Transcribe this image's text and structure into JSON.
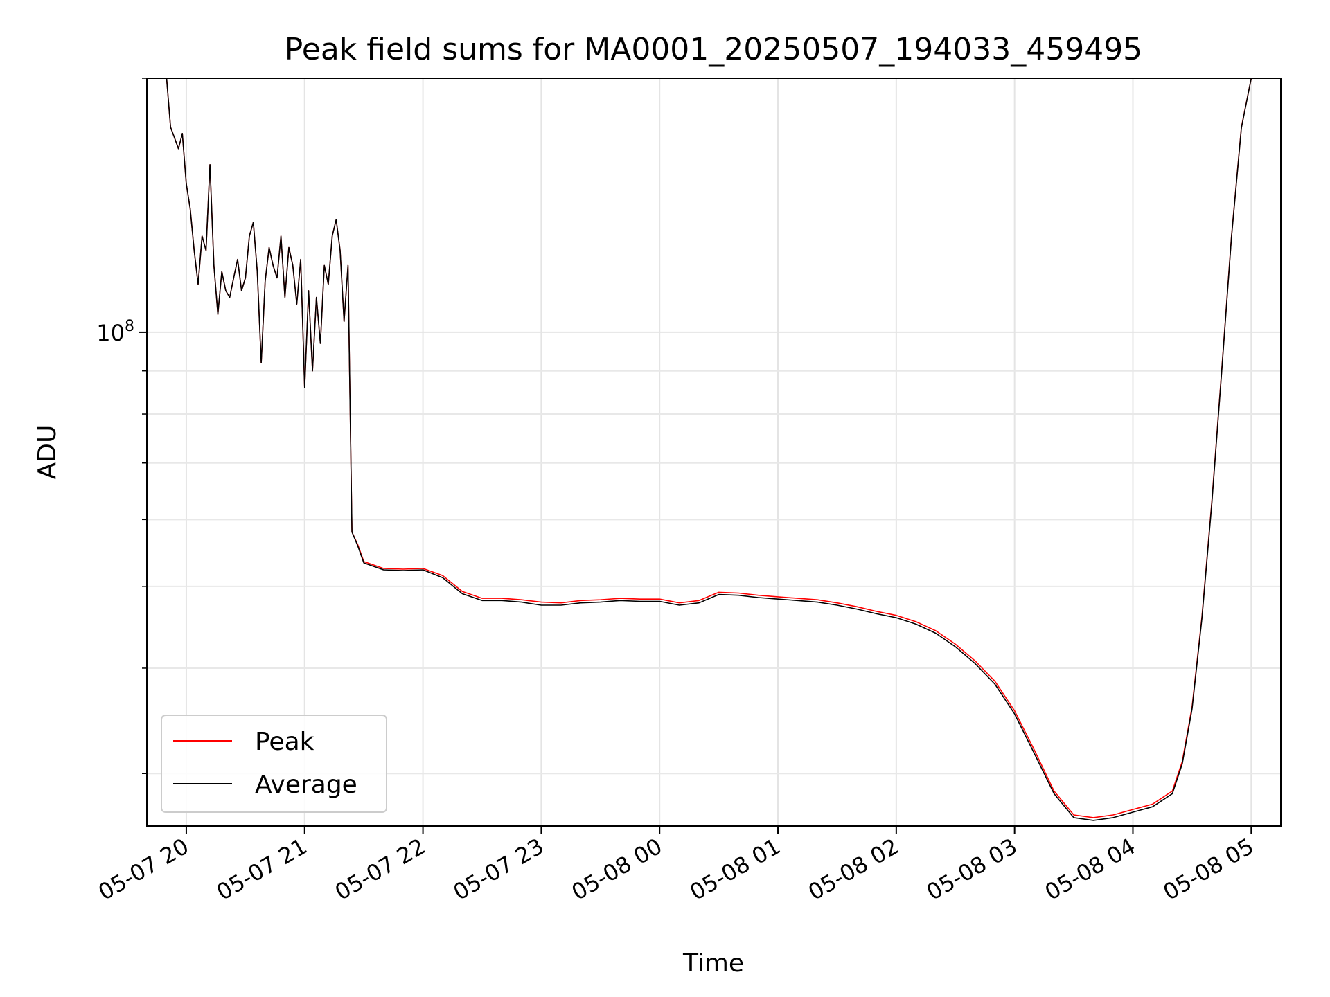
{
  "chart_data": {
    "type": "line",
    "title": "Peak field sums for MA0001_20250507_194033_459495",
    "xlabel": "Time",
    "ylabel": "ADU",
    "y_scale": "log",
    "grid": true,
    "legend_position": "lower-left",
    "xlim": [
      "2025-05-07 19:40",
      "2025-05-08 05:15"
    ],
    "ylim": [
      26000000,
      200000000
    ],
    "x_ticks": [
      "05-07 20",
      "05-07 21",
      "05-07 22",
      "05-07 23",
      "05-08 00",
      "05-08 01",
      "05-08 02",
      "05-08 03",
      "05-08 04",
      "05-08 05"
    ],
    "y_ticks": [
      {
        "mantissa": "10",
        "exponent": "8",
        "value": 100000000
      }
    ],
    "colors": {
      "peak": "#ff0000",
      "average": "#000000"
    },
    "series": [
      {
        "name": "Peak",
        "color": "#ff0000",
        "points": [
          [
            "2025-05-07 19:40",
            200000000
          ],
          [
            "2025-05-07 19:50",
            200000000
          ],
          [
            "2025-05-07 19:52",
            175000000
          ],
          [
            "2025-05-07 19:54",
            170000000
          ],
          [
            "2025-05-07 19:56",
            165000000
          ],
          [
            "2025-05-07 19:58",
            172000000
          ],
          [
            "2025-05-07 20:00",
            150000000
          ],
          [
            "2025-05-07 20:02",
            140000000
          ],
          [
            "2025-05-07 20:04",
            125000000
          ],
          [
            "2025-05-07 20:06",
            114000000
          ],
          [
            "2025-05-07 20:08",
            130000000
          ],
          [
            "2025-05-07 20:10",
            125000000
          ],
          [
            "2025-05-07 20:12",
            158000000
          ],
          [
            "2025-05-07 20:14",
            120000000
          ],
          [
            "2025-05-07 20:16",
            105000000
          ],
          [
            "2025-05-07 20:18",
            118000000
          ],
          [
            "2025-05-07 20:20",
            112000000
          ],
          [
            "2025-05-07 20:22",
            110000000
          ],
          [
            "2025-05-07 20:24",
            116000000
          ],
          [
            "2025-05-07 20:26",
            122000000
          ],
          [
            "2025-05-07 20:28",
            112000000
          ],
          [
            "2025-05-07 20:30",
            116000000
          ],
          [
            "2025-05-07 20:32",
            130000000
          ],
          [
            "2025-05-07 20:34",
            135000000
          ],
          [
            "2025-05-07 20:36",
            118000000
          ],
          [
            "2025-05-07 20:38",
            92000000
          ],
          [
            "2025-05-07 20:40",
            115000000
          ],
          [
            "2025-05-07 20:42",
            126000000
          ],
          [
            "2025-05-07 20:44",
            120000000
          ],
          [
            "2025-05-07 20:46",
            116000000
          ],
          [
            "2025-05-07 20:48",
            130000000
          ],
          [
            "2025-05-07 20:50",
            110000000
          ],
          [
            "2025-05-07 20:52",
            126000000
          ],
          [
            "2025-05-07 20:54",
            120000000
          ],
          [
            "2025-05-07 20:56",
            108000000
          ],
          [
            "2025-05-07 20:58",
            122000000
          ],
          [
            "2025-05-07 21:00",
            86000000
          ],
          [
            "2025-05-07 21:02",
            112000000
          ],
          [
            "2025-05-07 21:04",
            90000000
          ],
          [
            "2025-05-07 21:06",
            110000000
          ],
          [
            "2025-05-07 21:08",
            97000000
          ],
          [
            "2025-05-07 21:10",
            120000000
          ],
          [
            "2025-05-07 21:12",
            114000000
          ],
          [
            "2025-05-07 21:14",
            130000000
          ],
          [
            "2025-05-07 21:16",
            136000000
          ],
          [
            "2025-05-07 21:18",
            125000000
          ],
          [
            "2025-05-07 21:20",
            103000000
          ],
          [
            "2025-05-07 21:22",
            120000000
          ],
          [
            "2025-05-07 21:24",
            58000000
          ],
          [
            "2025-05-07 21:27",
            56000000
          ],
          [
            "2025-05-07 21:30",
            53500000
          ],
          [
            "2025-05-07 21:40",
            52500000
          ],
          [
            "2025-05-07 21:50",
            52400000
          ],
          [
            "2025-05-07 22:00",
            52500000
          ],
          [
            "2025-05-07 22:10",
            51500000
          ],
          [
            "2025-05-07 22:20",
            49300000
          ],
          [
            "2025-05-07 22:30",
            48400000
          ],
          [
            "2025-05-07 22:40",
            48400000
          ],
          [
            "2025-05-07 22:50",
            48200000
          ],
          [
            "2025-05-07 23:00",
            47900000
          ],
          [
            "2025-05-07 23:10",
            47800000
          ],
          [
            "2025-05-07 23:20",
            48100000
          ],
          [
            "2025-05-07 23:30",
            48200000
          ],
          [
            "2025-05-07 23:40",
            48400000
          ],
          [
            "2025-05-07 23:50",
            48300000
          ],
          [
            "2025-05-08 00:00",
            48300000
          ],
          [
            "2025-05-08 00:10",
            47800000
          ],
          [
            "2025-05-08 00:20",
            48100000
          ],
          [
            "2025-05-08 00:30",
            49200000
          ],
          [
            "2025-05-08 00:40",
            49100000
          ],
          [
            "2025-05-08 00:50",
            48800000
          ],
          [
            "2025-05-08 01:00",
            48600000
          ],
          [
            "2025-05-08 01:10",
            48400000
          ],
          [
            "2025-05-08 01:20",
            48200000
          ],
          [
            "2025-05-08 01:30",
            47800000
          ],
          [
            "2025-05-08 01:40",
            47300000
          ],
          [
            "2025-05-08 01:50",
            46700000
          ],
          [
            "2025-05-08 02:00",
            46200000
          ],
          [
            "2025-05-08 02:10",
            45400000
          ],
          [
            "2025-05-08 02:20",
            44300000
          ],
          [
            "2025-05-08 02:30",
            42700000
          ],
          [
            "2025-05-08 02:40",
            40800000
          ],
          [
            "2025-05-08 02:50",
            38600000
          ],
          [
            "2025-05-08 03:00",
            35600000
          ],
          [
            "2025-05-08 03:10",
            32000000
          ],
          [
            "2025-05-08 03:20",
            28600000
          ],
          [
            "2025-05-08 03:30",
            26800000
          ],
          [
            "2025-05-08 03:40",
            26600000
          ],
          [
            "2025-05-08 03:50",
            26800000
          ],
          [
            "2025-05-08 04:00",
            27200000
          ],
          [
            "2025-05-08 04:10",
            27600000
          ],
          [
            "2025-05-08 04:20",
            28600000
          ],
          [
            "2025-05-08 04:25",
            31000000
          ],
          [
            "2025-05-08 04:30",
            36000000
          ],
          [
            "2025-05-08 04:35",
            46000000
          ],
          [
            "2025-05-08 04:40",
            63000000
          ],
          [
            "2025-05-08 04:45",
            90000000
          ],
          [
            "2025-05-08 04:50",
            130000000
          ],
          [
            "2025-05-08 04:55",
            175000000
          ],
          [
            "2025-05-08 05:00",
            200000000
          ],
          [
            "2025-05-08 05:15",
            200000000
          ]
        ]
      },
      {
        "name": "Average",
        "color": "#000000",
        "points": [
          [
            "2025-05-07 19:40",
            200000000
          ],
          [
            "2025-05-07 19:50",
            200000000
          ],
          [
            "2025-05-07 19:52",
            175000000
          ],
          [
            "2025-05-07 19:54",
            170000000
          ],
          [
            "2025-05-07 19:56",
            165000000
          ],
          [
            "2025-05-07 19:58",
            172000000
          ],
          [
            "2025-05-07 20:00",
            150000000
          ],
          [
            "2025-05-07 20:02",
            140000000
          ],
          [
            "2025-05-07 20:04",
            125000000
          ],
          [
            "2025-05-07 20:06",
            114000000
          ],
          [
            "2025-05-07 20:08",
            130000000
          ],
          [
            "2025-05-07 20:10",
            125000000
          ],
          [
            "2025-05-07 20:12",
            158000000
          ],
          [
            "2025-05-07 20:14",
            120000000
          ],
          [
            "2025-05-07 20:16",
            105000000
          ],
          [
            "2025-05-07 20:18",
            118000000
          ],
          [
            "2025-05-07 20:20",
            112000000
          ],
          [
            "2025-05-07 20:22",
            110000000
          ],
          [
            "2025-05-07 20:24",
            116000000
          ],
          [
            "2025-05-07 20:26",
            122000000
          ],
          [
            "2025-05-07 20:28",
            112000000
          ],
          [
            "2025-05-07 20:30",
            116000000
          ],
          [
            "2025-05-07 20:32",
            130000000
          ],
          [
            "2025-05-07 20:34",
            135000000
          ],
          [
            "2025-05-07 20:36",
            118000000
          ],
          [
            "2025-05-07 20:38",
            92000000
          ],
          [
            "2025-05-07 20:40",
            115000000
          ],
          [
            "2025-05-07 20:42",
            126000000
          ],
          [
            "2025-05-07 20:44",
            120000000
          ],
          [
            "2025-05-07 20:46",
            116000000
          ],
          [
            "2025-05-07 20:48",
            130000000
          ],
          [
            "2025-05-07 20:50",
            110000000
          ],
          [
            "2025-05-07 20:52",
            126000000
          ],
          [
            "2025-05-07 20:54",
            120000000
          ],
          [
            "2025-05-07 20:56",
            108000000
          ],
          [
            "2025-05-07 20:58",
            122000000
          ],
          [
            "2025-05-07 21:00",
            86000000
          ],
          [
            "2025-05-07 21:02",
            112000000
          ],
          [
            "2025-05-07 21:04",
            90000000
          ],
          [
            "2025-05-07 21:06",
            110000000
          ],
          [
            "2025-05-07 21:08",
            97000000
          ],
          [
            "2025-05-07 21:10",
            120000000
          ],
          [
            "2025-05-07 21:12",
            114000000
          ],
          [
            "2025-05-07 21:14",
            130000000
          ],
          [
            "2025-05-07 21:16",
            136000000
          ],
          [
            "2025-05-07 21:18",
            125000000
          ],
          [
            "2025-05-07 21:20",
            103000000
          ],
          [
            "2025-05-07 21:22",
            120000000
          ],
          [
            "2025-05-07 21:24",
            58000000
          ],
          [
            "2025-05-07 21:27",
            55800000
          ],
          [
            "2025-05-07 21:30",
            53300000
          ],
          [
            "2025-05-07 21:40",
            52300000
          ],
          [
            "2025-05-07 21:50",
            52200000
          ],
          [
            "2025-05-07 22:00",
            52300000
          ],
          [
            "2025-05-07 22:10",
            51200000
          ],
          [
            "2025-05-07 22:20",
            49000000
          ],
          [
            "2025-05-07 22:30",
            48100000
          ],
          [
            "2025-05-07 22:40",
            48100000
          ],
          [
            "2025-05-07 22:50",
            47900000
          ],
          [
            "2025-05-07 23:00",
            47500000
          ],
          [
            "2025-05-07 23:10",
            47500000
          ],
          [
            "2025-05-07 23:20",
            47800000
          ],
          [
            "2025-05-07 23:30",
            47900000
          ],
          [
            "2025-05-07 23:40",
            48100000
          ],
          [
            "2025-05-07 23:50",
            48000000
          ],
          [
            "2025-05-08 00:00",
            48000000
          ],
          [
            "2025-05-08 00:10",
            47500000
          ],
          [
            "2025-05-08 00:20",
            47800000
          ],
          [
            "2025-05-08 00:30",
            48900000
          ],
          [
            "2025-05-08 00:40",
            48800000
          ],
          [
            "2025-05-08 00:50",
            48500000
          ],
          [
            "2025-05-08 01:00",
            48300000
          ],
          [
            "2025-05-08 01:10",
            48100000
          ],
          [
            "2025-05-08 01:20",
            47900000
          ],
          [
            "2025-05-08 01:30",
            47500000
          ],
          [
            "2025-05-08 01:40",
            47000000
          ],
          [
            "2025-05-08 01:50",
            46400000
          ],
          [
            "2025-05-08 02:00",
            45900000
          ],
          [
            "2025-05-08 02:10",
            45100000
          ],
          [
            "2025-05-08 02:20",
            44000000
          ],
          [
            "2025-05-08 02:30",
            42400000
          ],
          [
            "2025-05-08 02:40",
            40500000
          ],
          [
            "2025-05-08 02:50",
            38300000
          ],
          [
            "2025-05-08 03:00",
            35300000
          ],
          [
            "2025-05-08 03:10",
            31700000
          ],
          [
            "2025-05-08 03:20",
            28400000
          ],
          [
            "2025-05-08 03:30",
            26600000
          ],
          [
            "2025-05-08 03:40",
            26400000
          ],
          [
            "2025-05-08 03:50",
            26600000
          ],
          [
            "2025-05-08 04:00",
            27000000
          ],
          [
            "2025-05-08 04:10",
            27400000
          ],
          [
            "2025-05-08 04:20",
            28400000
          ],
          [
            "2025-05-08 04:25",
            30800000
          ],
          [
            "2025-05-08 04:30",
            35800000
          ],
          [
            "2025-05-08 04:35",
            45800000
          ],
          [
            "2025-05-08 04:40",
            62700000
          ],
          [
            "2025-05-08 04:45",
            89700000
          ],
          [
            "2025-05-08 04:50",
            129700000
          ],
          [
            "2025-05-08 04:55",
            174700000
          ],
          [
            "2025-05-08 05:00",
            200000000
          ],
          [
            "2025-05-08 05:15",
            200000000
          ]
        ]
      }
    ]
  }
}
